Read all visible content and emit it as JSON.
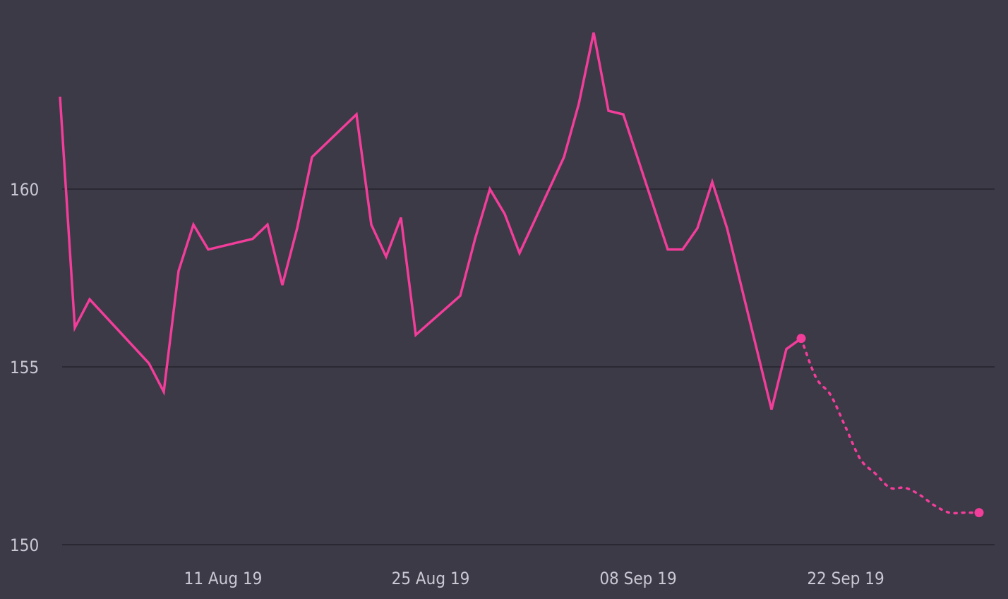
{
  "chart_data": {
    "type": "line",
    "title": "",
    "xlabel": "",
    "ylabel": "",
    "x_tick_labels": [
      "11 Aug 19",
      "25 Aug 19",
      "08 Sep 19",
      "22 Sep 19"
    ],
    "y_tick_labels": [
      "150",
      "155",
      "160"
    ],
    "ylim": [
      150,
      164.5
    ],
    "xlim": [
      "2019-07-30",
      "2019-10-02"
    ],
    "grid": true,
    "gridline_color": "#24232c",
    "background_color": "#3b3a46",
    "series": [
      {
        "style": "solid",
        "color": "#f23d9a",
        "points": [
          {
            "x": "2019-07-31",
            "y": 162.6
          },
          {
            "x": "2019-08-01",
            "y": 156.1
          },
          {
            "x": "2019-08-02",
            "y": 156.9
          },
          {
            "x": "2019-08-06",
            "y": 155.1
          },
          {
            "x": "2019-08-07",
            "y": 154.3
          },
          {
            "x": "2019-08-08",
            "y": 157.7
          },
          {
            "x": "2019-08-09",
            "y": 159.0
          },
          {
            "x": "2019-08-10",
            "y": 158.3
          },
          {
            "x": "2019-08-13",
            "y": 158.6
          },
          {
            "x": "2019-08-14",
            "y": 159.0
          },
          {
            "x": "2019-08-15",
            "y": 157.3
          },
          {
            "x": "2019-08-16",
            "y": 158.9
          },
          {
            "x": "2019-08-17",
            "y": 160.9
          },
          {
            "x": "2019-08-20",
            "y": 162.1
          },
          {
            "x": "2019-08-21",
            "y": 159.0
          },
          {
            "x": "2019-08-22",
            "y": 158.1
          },
          {
            "x": "2019-08-23",
            "y": 159.2
          },
          {
            "x": "2019-08-24",
            "y": 155.9
          },
          {
            "x": "2019-08-27",
            "y": 157.0
          },
          {
            "x": "2019-08-28",
            "y": 158.6
          },
          {
            "x": "2019-08-29",
            "y": 160.0
          },
          {
            "x": "2019-08-30",
            "y": 159.3
          },
          {
            "x": "2019-08-31",
            "y": 158.2
          },
          {
            "x": "2019-09-03",
            "y": 160.9
          },
          {
            "x": "2019-09-04",
            "y": 162.4
          },
          {
            "x": "2019-09-05",
            "y": 164.4
          },
          {
            "x": "2019-09-06",
            "y": 162.2
          },
          {
            "x": "2019-09-07",
            "y": 162.1
          },
          {
            "x": "2019-09-10",
            "y": 158.3
          },
          {
            "x": "2019-09-11",
            "y": 158.3
          },
          {
            "x": "2019-09-12",
            "y": 158.9
          },
          {
            "x": "2019-09-13",
            "y": 160.2
          },
          {
            "x": "2019-09-14",
            "y": 158.9
          },
          {
            "x": "2019-09-17",
            "y": 153.8
          },
          {
            "x": "2019-09-18",
            "y": 155.5
          },
          {
            "x": "2019-09-19",
            "y": 155.8
          }
        ]
      },
      {
        "style": "dotted",
        "color": "#f23d9a",
        "points": [
          {
            "x": "2019-09-19",
            "y": 155.8
          },
          {
            "x": "2019-09-20",
            "y": 154.7
          },
          {
            "x": "2019-09-21",
            "y": 154.2
          },
          {
            "x": "2019-09-22",
            "y": 153.3
          },
          {
            "x": "2019-09-23",
            "y": 152.4
          },
          {
            "x": "2019-09-24",
            "y": 152.0
          },
          {
            "x": "2019-09-25",
            "y": 151.6
          },
          {
            "x": "2019-09-26",
            "y": 151.6
          },
          {
            "x": "2019-09-27",
            "y": 151.4
          },
          {
            "x": "2019-09-28",
            "y": 151.1
          },
          {
            "x": "2019-09-29",
            "y": 150.9
          },
          {
            "x": "2019-09-30",
            "y": 150.9
          },
          {
            "x": "2019-10-01",
            "y": 150.9
          }
        ]
      }
    ]
  }
}
